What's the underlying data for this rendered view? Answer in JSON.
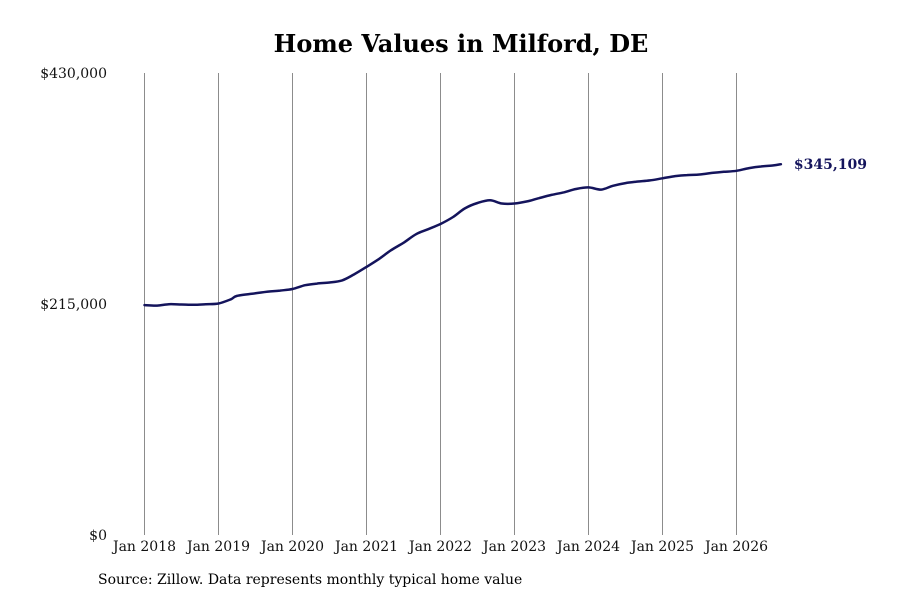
{
  "chart_data": {
    "type": "line",
    "title": "Home Values in Milford, DE",
    "xlabel": "",
    "ylabel": "",
    "ylim": [
      0,
      430000
    ],
    "y_ticks": [
      {
        "value": 0,
        "label": "$0"
      },
      {
        "value": 215000,
        "label": "$215,000"
      },
      {
        "value": 430000,
        "label": "$430,000"
      }
    ],
    "x_ticks": [
      {
        "value": 2018.0,
        "label": "Jan 2018"
      },
      {
        "value": 2019.0,
        "label": "Jan 2019"
      },
      {
        "value": 2020.0,
        "label": "Jan 2020"
      },
      {
        "value": 2021.0,
        "label": "Jan 2021"
      },
      {
        "value": 2022.0,
        "label": "Jan 2022"
      },
      {
        "value": 2023.0,
        "label": "Jan 2023"
      },
      {
        "value": 2024.0,
        "label": "Jan 2024"
      },
      {
        "value": 2025.0,
        "label": "Jan 2025"
      },
      {
        "value": 2026.0,
        "label": "Jan 2026"
      }
    ],
    "grid": "vertical",
    "series": [
      {
        "color": "#14145c",
        "end_label": "$345,109",
        "points": [
          [
            2018.0,
            214000
          ],
          [
            2018.17,
            213500
          ],
          [
            2018.33,
            214800
          ],
          [
            2018.5,
            214500
          ],
          [
            2018.67,
            214300
          ],
          [
            2018.83,
            214800
          ],
          [
            2019.0,
            215500
          ],
          [
            2019.17,
            219500
          ],
          [
            2019.25,
            222500
          ],
          [
            2019.5,
            225000
          ],
          [
            2019.67,
            226500
          ],
          [
            2019.83,
            227500
          ],
          [
            2020.0,
            229000
          ],
          [
            2020.17,
            232500
          ],
          [
            2020.33,
            234000
          ],
          [
            2020.5,
            235000
          ],
          [
            2020.67,
            237000
          ],
          [
            2020.83,
            242500
          ],
          [
            2021.0,
            249500
          ],
          [
            2021.17,
            257000
          ],
          [
            2021.33,
            265000
          ],
          [
            2021.5,
            272000
          ],
          [
            2021.67,
            280000
          ],
          [
            2021.83,
            284500
          ],
          [
            2022.0,
            289500
          ],
          [
            2022.17,
            296000
          ],
          [
            2022.33,
            304000
          ],
          [
            2022.5,
            309000
          ],
          [
            2022.67,
            311500
          ],
          [
            2022.83,
            308500
          ],
          [
            2023.0,
            308500
          ],
          [
            2023.17,
            310500
          ],
          [
            2023.33,
            313500
          ],
          [
            2023.5,
            316500
          ],
          [
            2023.67,
            319000
          ],
          [
            2023.83,
            322000
          ],
          [
            2024.0,
            323500
          ],
          [
            2024.17,
            321500
          ],
          [
            2024.33,
            325000
          ],
          [
            2024.5,
            327500
          ],
          [
            2024.67,
            329000
          ],
          [
            2024.83,
            330000
          ],
          [
            2025.0,
            332000
          ],
          [
            2025.17,
            334000
          ],
          [
            2025.33,
            335000
          ],
          [
            2025.5,
            335500
          ],
          [
            2025.67,
            337000
          ],
          [
            2025.83,
            338000
          ],
          [
            2026.0,
            339000
          ],
          [
            2026.17,
            341500
          ],
          [
            2026.33,
            343000
          ],
          [
            2026.5,
            344000
          ],
          [
            2026.6,
            345109
          ]
        ]
      }
    ]
  },
  "footer": {
    "source": "Source: Zillow. Data represents monthly typical home value"
  }
}
